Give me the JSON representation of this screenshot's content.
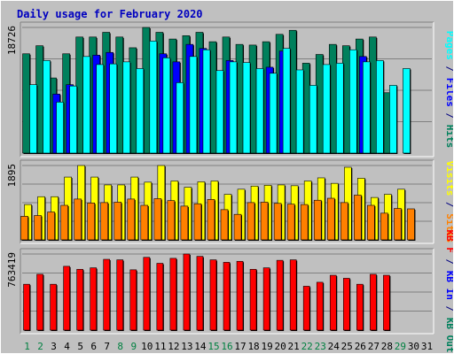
{
  "chart_data": {
    "type": "bar",
    "title": "Daily usage for February 2020",
    "days": [
      "1",
      "2",
      "3",
      "4",
      "5",
      "6",
      "7",
      "8",
      "9",
      "10",
      "11",
      "12",
      "13",
      "14",
      "15",
      "16",
      "17",
      "18",
      "19",
      "20",
      "21",
      "22",
      "23",
      "24",
      "25",
      "26",
      "27",
      "28",
      "29",
      "30",
      "31"
    ],
    "weekend_days": [
      1,
      2,
      8,
      9,
      15,
      16,
      22,
      23,
      29
    ],
    "panels": [
      {
        "id": "requests",
        "max_label": "18726",
        "ymax": 18726,
        "series": [
          {
            "name": "Hits",
            "color": "#00805c",
            "values": [
              14800,
              16000,
              11200,
              14800,
              17300,
              17300,
              18000,
              17300,
              15700,
              18726,
              18000,
              17000,
              17500,
              18000,
              16600,
              17300,
              16200,
              16100,
              16600,
              17700,
              18300,
              13400,
              14700,
              16200,
              16000,
              17000,
              17300,
              9000,
              null,
              null,
              null
            ]
          },
          {
            "name": "Files",
            "color": "#0000ff",
            "values": [
              0,
              0,
              8800,
              10200,
              0,
              14600,
              15000,
              0,
              0,
              0,
              14800,
              13600,
              16200,
              15600,
              0,
              13800,
              0,
              0,
              12800,
              15200,
              0,
              0,
              0,
              0,
              0,
              14400,
              0,
              0,
              null,
              null,
              null
            ]
          },
          {
            "name": "Pages",
            "color": "#00ffff",
            "values": [
              10200,
              13800,
              7600,
              10000,
              14400,
              13200,
              13300,
              13600,
              12600,
              16700,
              14200,
              10500,
              14400,
              15400,
              12300,
              13600,
              13500,
              12600,
              11900,
              15600,
              12400,
              10100,
              13200,
              13400,
              15400,
              13600,
              13800,
              10100,
              12600,
              null,
              null
            ]
          }
        ]
      },
      {
        "id": "visits",
        "max_label": "1895",
        "ymax": 1895,
        "series": [
          {
            "name": "Visits",
            "color": "#ffff00",
            "values": [
              900,
              1100,
              1100,
              1600,
              1895,
              1600,
              1400,
              1400,
              1600,
              1470,
              1895,
              1500,
              1340,
              1480,
              1500,
              1160,
              1290,
              1370,
              1390,
              1400,
              1380,
              1500,
              1580,
              1440,
              1850,
              1570,
              1080,
              1160,
              1290,
              null,
              null
            ]
          },
          {
            "name": "Sites",
            "color": "#ff8000",
            "values": [
              600,
              620,
              710,
              880,
              1040,
              940,
              950,
              960,
              1040,
              880,
              1050,
              1000,
              860,
              920,
              1030,
              770,
              650,
              950,
              960,
              930,
              910,
              900,
              1010,
              1060,
              950,
              1140,
              880,
              680,
              800,
              790,
              null
            ]
          }
        ]
      },
      {
        "id": "kbytes",
        "max_label": "763419",
        "ymax": 763419,
        "series": [
          {
            "name": "KB F",
            "color": "#ff0000",
            "values": [
              460000,
              560000,
              460000,
              640000,
              610000,
              625000,
              710000,
              705000,
              605000,
              730000,
              670000,
              720000,
              763419,
              740000,
              705000,
              680000,
              690000,
              610000,
              625000,
              700000,
              705000,
              440000,
              480000,
              550000,
              520000,
              460000,
              560000,
              550000,
              null,
              null,
              null
            ]
          }
        ]
      }
    ],
    "right_labels": [
      [
        {
          "text": "Pages",
          "color": "#00ffff"
        },
        {
          "text": " / ",
          "color": "#000080"
        },
        {
          "text": "Files",
          "color": "#0000ff"
        },
        {
          "text": " / ",
          "color": "#000080"
        },
        {
          "text": "Hits",
          "color": "#00805c"
        }
      ],
      [
        {
          "text": "Visits",
          "color": "#ffff00"
        },
        {
          "text": " / ",
          "color": "#000080"
        },
        {
          "text": "Sites",
          "color": "#ff8000"
        }
      ],
      [
        {
          "text": "KB F",
          "color": "#ff0000"
        },
        {
          "text": " / ",
          "color": "#000080"
        },
        {
          "text": "KB In",
          "color": "#0000ff"
        },
        {
          "text": " / ",
          "color": "#000080"
        },
        {
          "text": "KB Out",
          "color": "#00805c"
        }
      ]
    ],
    "colors": {
      "background": "#c0c0c0",
      "grid": "#808080",
      "title": "#0000c0",
      "weekday_label": "#000000",
      "weekend_label": "#008040"
    }
  }
}
